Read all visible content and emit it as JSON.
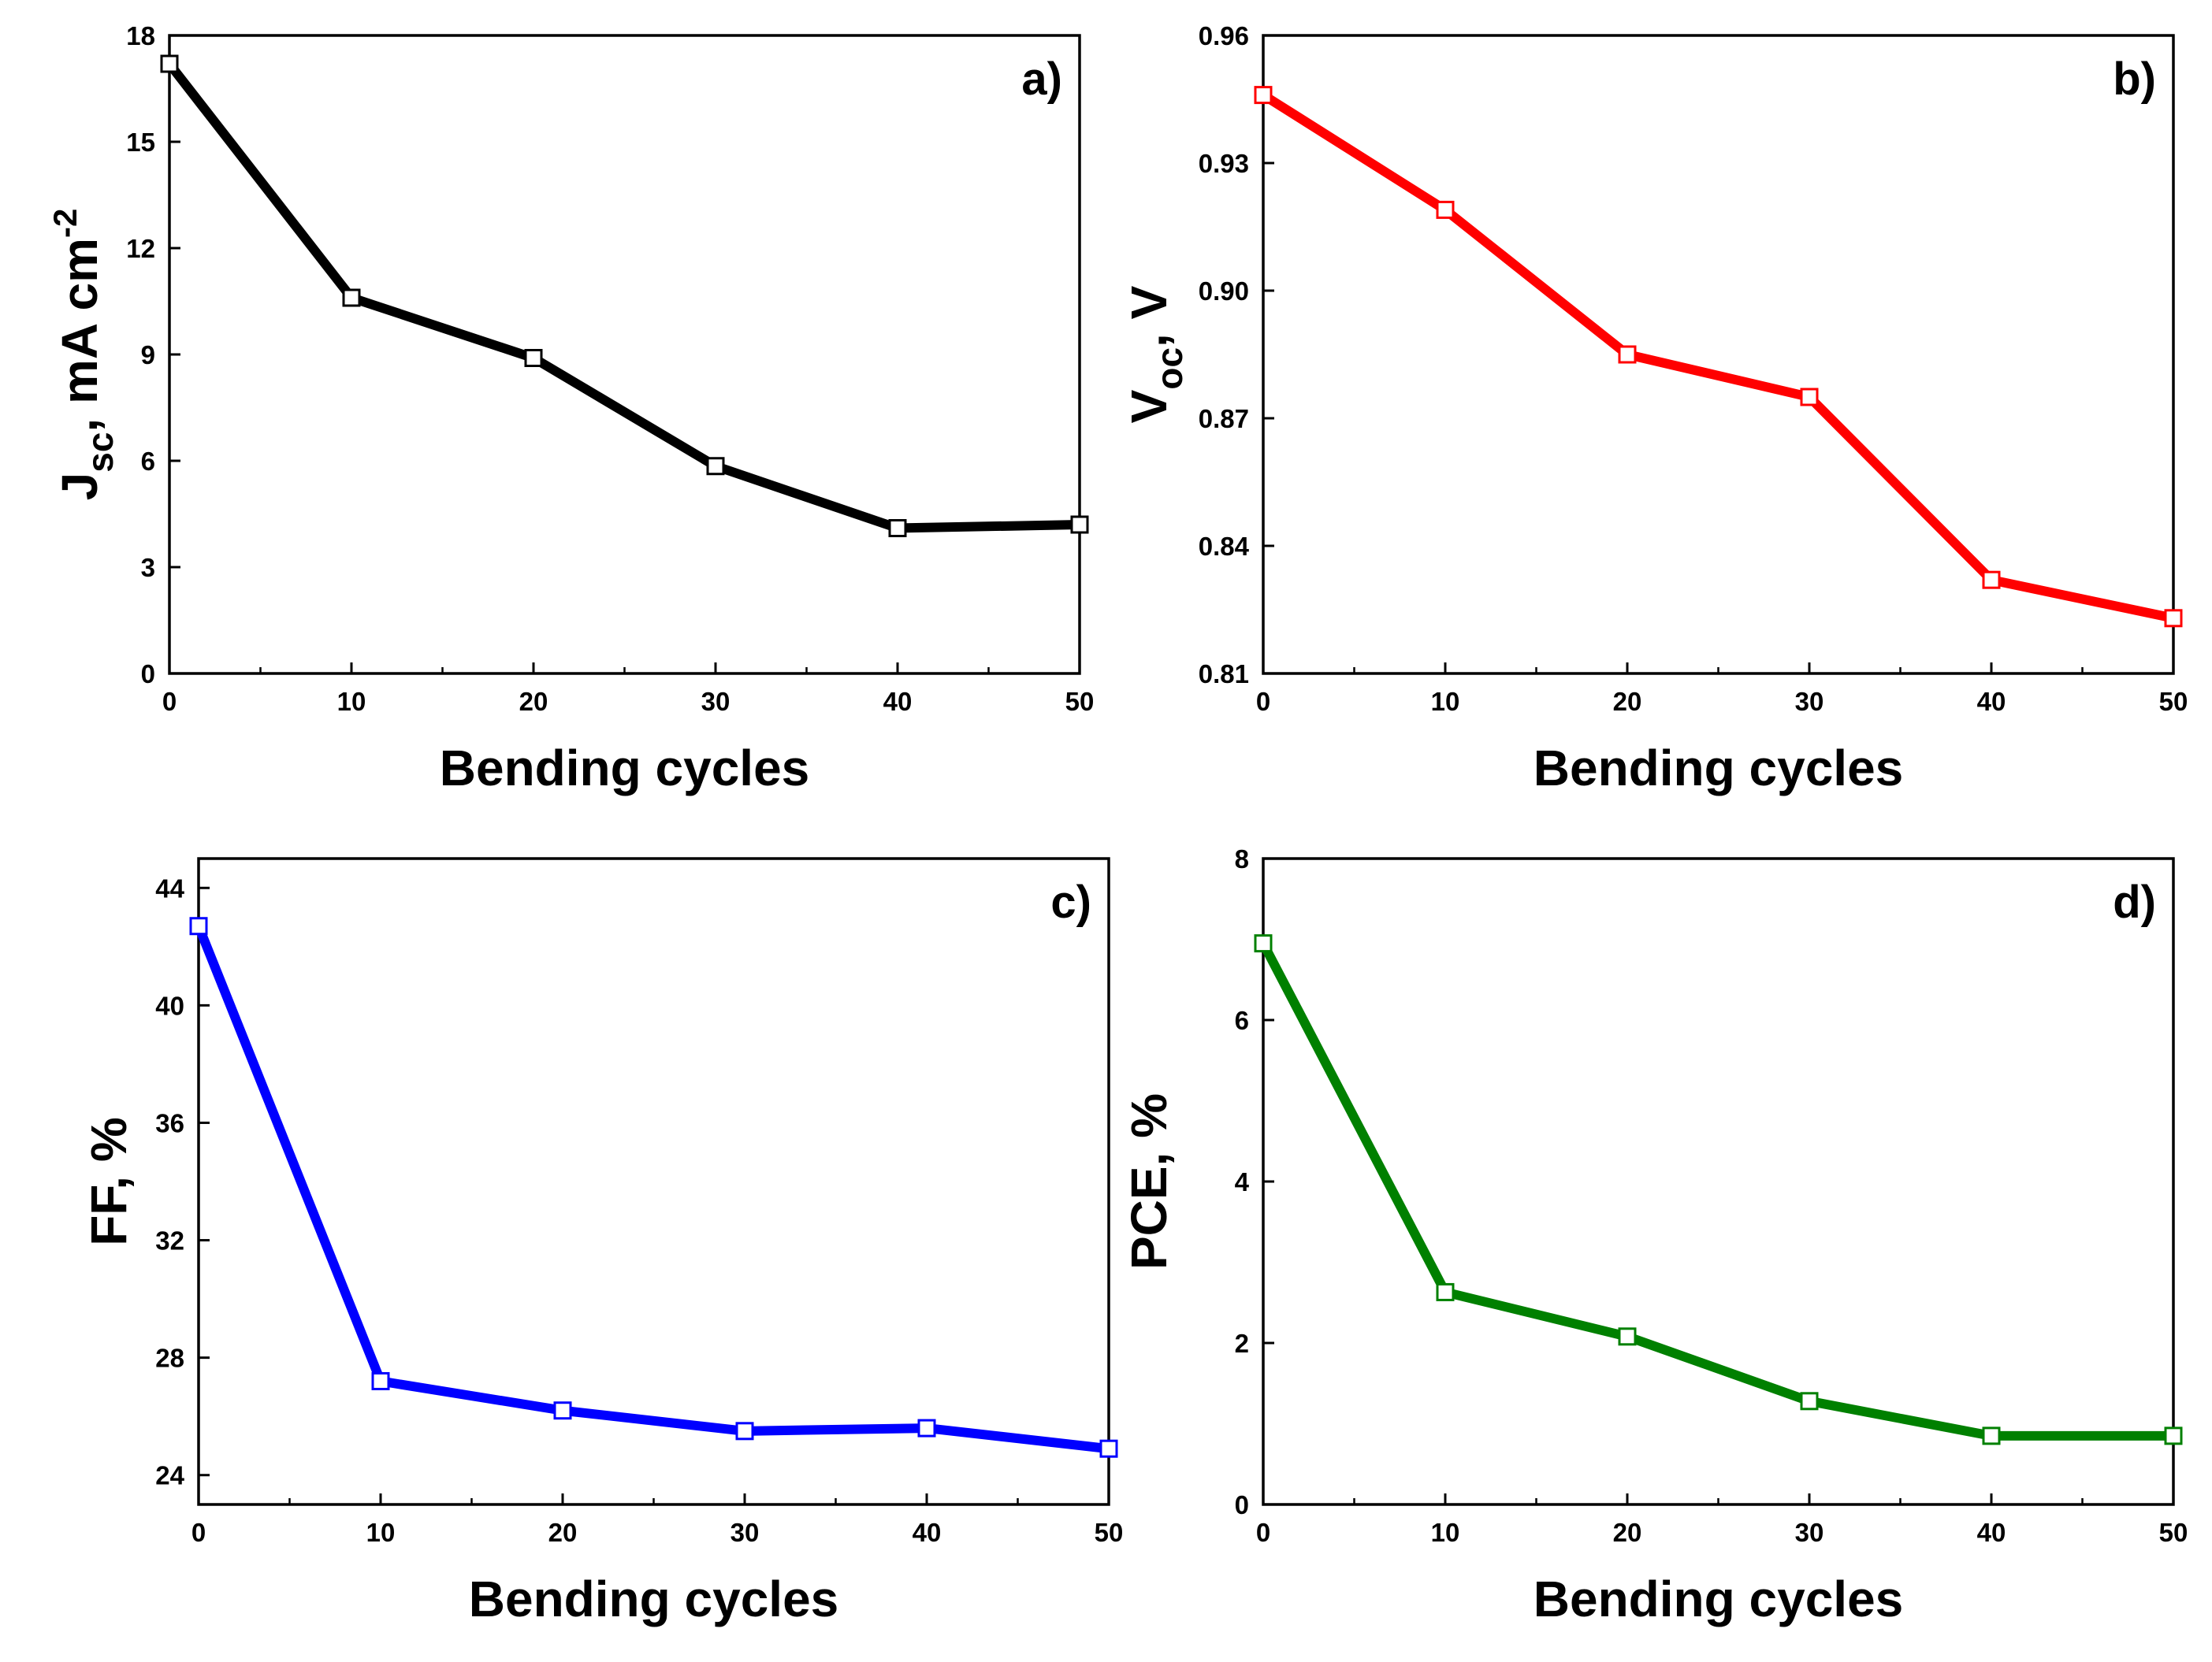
{
  "figure": {
    "panels": [
      {
        "id": "a",
        "panel_label": "a)",
        "y_title": {
          "main": "J",
          "sub": "sc",
          "rest": ", mA cm",
          "sup": "-2"
        },
        "color": "#000000"
      },
      {
        "id": "b",
        "panel_label": "b)",
        "y_title": {
          "main": "V",
          "sub": "oc",
          "rest": ", V",
          "sup": ""
        },
        "color": "#ff0000"
      },
      {
        "id": "c",
        "panel_label": "c)",
        "y_title": {
          "main": "FF, %",
          "sub": "",
          "rest": "",
          "sup": ""
        },
        "color": "#0000ff"
      },
      {
        "id": "d",
        "panel_label": "d)",
        "y_title": {
          "main": "PCE, %",
          "sub": "",
          "rest": "",
          "sup": ""
        },
        "color": "#008000"
      }
    ]
  },
  "chart_data": [
    {
      "type": "line",
      "title": "a)",
      "xlabel": "Bending cycles",
      "ylabel": "Jsc, mA cm-2",
      "x": [
        0,
        10,
        20,
        30,
        40,
        50
      ],
      "series": [
        {
          "name": "Jsc",
          "values": [
            17.2,
            10.6,
            8.9,
            5.85,
            4.1,
            4.2
          ],
          "color": "#000000",
          "marker": "open-square"
        }
      ],
      "xlim": [
        0,
        50
      ],
      "ylim": [
        0,
        18
      ],
      "xticks": [
        "0",
        "10",
        "20",
        "30",
        "40",
        "50"
      ],
      "yticks": [
        "0",
        "3",
        "6",
        "9",
        "12",
        "15",
        "18"
      ],
      "ytick_values": [
        0,
        3,
        6,
        9,
        12,
        15,
        18
      ],
      "grid": false
    },
    {
      "type": "line",
      "title": "b)",
      "xlabel": "Bending cycles",
      "ylabel": "Voc, V",
      "x": [
        0,
        10,
        20,
        30,
        40,
        50
      ],
      "series": [
        {
          "name": "Voc",
          "values": [
            0.946,
            0.919,
            0.885,
            0.875,
            0.832,
            0.823
          ],
          "color": "#ff0000",
          "marker": "open-square"
        }
      ],
      "xlim": [
        0,
        50
      ],
      "ylim": [
        0.81,
        0.96
      ],
      "xticks": [
        "0",
        "10",
        "20",
        "30",
        "40",
        "50"
      ],
      "yticks": [
        "0.81",
        "0.84",
        "0.87",
        "0.90",
        "0.93",
        "0.96"
      ],
      "ytick_values": [
        0.81,
        0.84,
        0.87,
        0.9,
        0.93,
        0.96
      ],
      "grid": false
    },
    {
      "type": "line",
      "title": "c)",
      "xlabel": "Bending cycles",
      "ylabel": "FF, %",
      "x": [
        0,
        10,
        20,
        30,
        40,
        50
      ],
      "series": [
        {
          "name": "FF",
          "values": [
            42.7,
            27.2,
            26.2,
            25.5,
            25.6,
            24.9
          ],
          "color": "#0000ff",
          "marker": "open-square"
        }
      ],
      "xlim": [
        0,
        50
      ],
      "ylim": [
        23,
        45
      ],
      "xticks": [
        "0",
        "10",
        "20",
        "30",
        "40",
        "50"
      ],
      "yticks": [
        "24",
        "28",
        "32",
        "36",
        "40",
        "44"
      ],
      "ytick_values": [
        24,
        28,
        32,
        36,
        40,
        44
      ],
      "grid": false
    },
    {
      "type": "line",
      "title": "d)",
      "xlabel": "Bending cycles",
      "ylabel": "PCE, %",
      "x": [
        0,
        10,
        20,
        30,
        40,
        50
      ],
      "series": [
        {
          "name": "PCE",
          "values": [
            6.95,
            2.63,
            2.08,
            1.28,
            0.85,
            0.85
          ],
          "color": "#008000",
          "marker": "open-square"
        }
      ],
      "xlim": [
        0,
        50
      ],
      "ylim": [
        0,
        8
      ],
      "xticks": [
        "0",
        "10",
        "20",
        "30",
        "40",
        "50"
      ],
      "yticks": [
        "0",
        "2",
        "4",
        "6",
        "8"
      ],
      "ytick_values": [
        0,
        2,
        4,
        6,
        8
      ],
      "grid": false
    }
  ]
}
